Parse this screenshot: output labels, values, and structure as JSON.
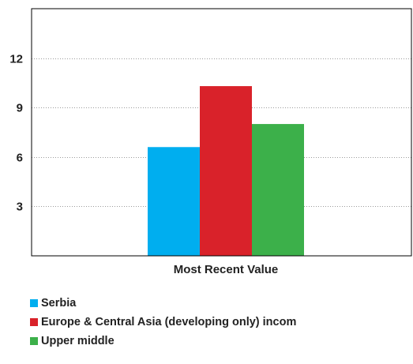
{
  "chart_data": {
    "type": "bar",
    "categories": [
      "Most Recent Value"
    ],
    "series": [
      {
        "name": "Serbia",
        "values": [
          6.6
        ],
        "color": "#00aeef"
      },
      {
        "name": "Europe & Central Asia (developing only) incom",
        "values": [
          10.3
        ],
        "color": "#d9222a"
      },
      {
        "name": "Upper middle",
        "values": [
          8.0
        ],
        "color": "#3cb04a"
      }
    ],
    "y_ticks": [
      3,
      6,
      9,
      12
    ],
    "ylim": [
      0,
      15
    ],
    "grid": "horizontal dotted",
    "legend_position": "bottom"
  }
}
